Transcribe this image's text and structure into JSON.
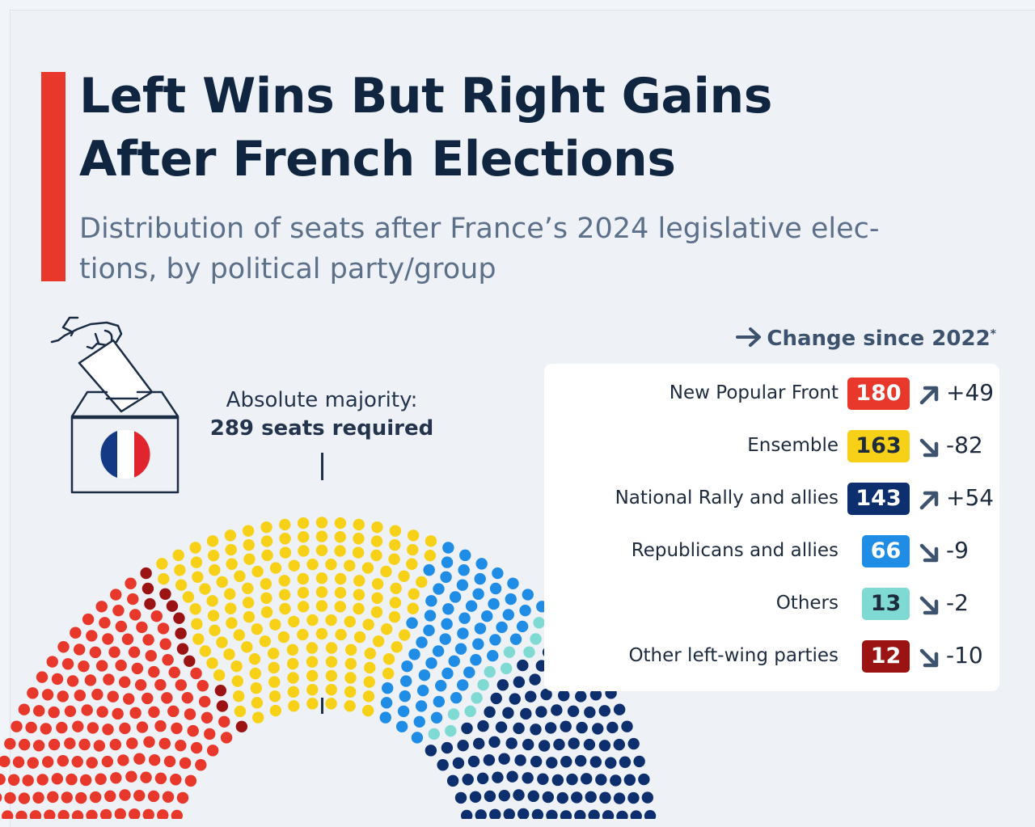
{
  "title": {
    "line1": "Left Wins But Right Gains",
    "line2": "After French Elections"
  },
  "subtitle": {
    "line1": "Distribution of seats after France’s 2024 legislative elec-",
    "line2": "tions, by political party/group"
  },
  "majority": {
    "label": "Absolute majority:",
    "value_text": "289 seats required"
  },
  "change_header": {
    "label": "Change since 2022",
    "footnote_mark": "*"
  },
  "colors": {
    "accent": "#e8372b",
    "new_popular_front": "#e8372b",
    "ensemble": "#f7d117",
    "national_rally": "#0d2f6e",
    "republicans": "#1f8ce6",
    "others": "#7fdad4",
    "other_left": "#9b1313"
  },
  "icons": {
    "ballot": "ballot-box-icon",
    "flag": "french-flag-icon",
    "arrow_right": "arrow-right-icon",
    "arrow_up": "arrow-up-right-icon",
    "arrow_down": "arrow-down-right-icon"
  },
  "chart_data": {
    "type": "hemicycle",
    "title": "Distribution of seats after France’s 2024 legislative elections, by political party/group",
    "total_seats": 577,
    "majority": 289,
    "seat_order_left_to_right": [
      "New Popular Front",
      "Other left-wing parties",
      "Ensemble",
      "Republicans and allies",
      "Others",
      "National Rally and allies"
    ],
    "parties": [
      {
        "name": "New Popular Front",
        "seats": 180,
        "change": "+49",
        "direction": "up",
        "color": "#e8372b",
        "text_color": "#ffffff"
      },
      {
        "name": "Ensemble",
        "seats": 163,
        "change": "-82",
        "direction": "down",
        "color": "#f7d117",
        "text_color": "#1d2b3d"
      },
      {
        "name": "National Rally and allies",
        "seats": 143,
        "change": "+54",
        "direction": "up",
        "color": "#0d2f6e",
        "text_color": "#ffffff"
      },
      {
        "name": "Republicans and allies",
        "seats": 66,
        "change": "-9",
        "direction": "down",
        "color": "#1f8ce6",
        "text_color": "#ffffff"
      },
      {
        "name": "Others",
        "seats": 13,
        "change": "-2",
        "direction": "down",
        "color": "#7fdad4",
        "text_color": "#1d2b3d"
      },
      {
        "name": "Other left-wing parties",
        "seats": 12,
        "change": "-10",
        "direction": "down",
        "color": "#9b1313",
        "text_color": "#ffffff"
      }
    ]
  }
}
